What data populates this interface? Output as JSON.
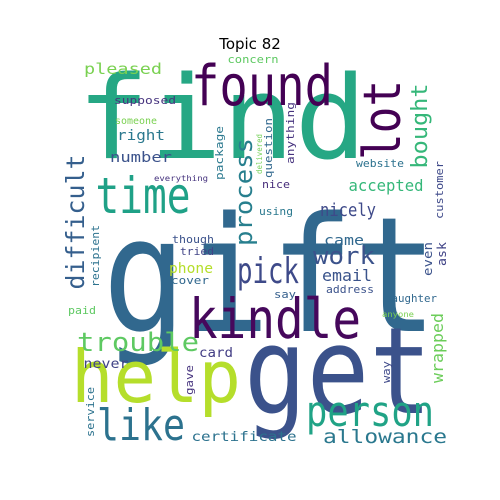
{
  "title": "Topic 82",
  "words": [
    {
      "text": "gift",
      "color": "#31688e",
      "vertical": false
    },
    {
      "text": "find",
      "color": "#26a784",
      "vertical": false
    },
    {
      "text": "get",
      "color": "#3b528b",
      "vertical": false
    },
    {
      "text": "help",
      "color": "#b5de2b",
      "vertical": false
    },
    {
      "text": "found",
      "color": "#440154",
      "vertical": false
    },
    {
      "text": "kindle",
      "color": "#46085c",
      "vertical": false
    },
    {
      "text": "time",
      "color": "#1fa187",
      "vertical": false
    },
    {
      "text": "lot",
      "color": "#440154",
      "vertical": true
    },
    {
      "text": "person",
      "color": "#20a386",
      "vertical": false
    },
    {
      "text": "like",
      "color": "#2c728e",
      "vertical": false
    },
    {
      "text": "pick",
      "color": "#3e4a89",
      "vertical": false
    },
    {
      "text": "trouble",
      "color": "#5ec962",
      "vertical": false
    },
    {
      "text": "difficult",
      "color": "#355f8d",
      "vertical": true
    },
    {
      "text": "work",
      "color": "#3b528b",
      "vertical": false
    },
    {
      "text": "process",
      "color": "#277f8e",
      "vertical": true
    },
    {
      "text": "bought",
      "color": "#35b779",
      "vertical": true
    },
    {
      "text": "allowance",
      "color": "#2a788e",
      "vertical": false
    },
    {
      "text": "nicely",
      "color": "#3e4989",
      "vertical": false
    },
    {
      "text": "accepted",
      "color": "#35b779",
      "vertical": false
    },
    {
      "text": "wrapped",
      "color": "#6ccd5a",
      "vertical": true
    },
    {
      "text": "email",
      "color": "#3a538b",
      "vertical": false
    },
    {
      "text": "pleased",
      "color": "#7ad151",
      "vertical": false
    },
    {
      "text": "number",
      "color": "#3b528b",
      "vertical": false
    },
    {
      "text": "right",
      "color": "#2a788e",
      "vertical": false
    },
    {
      "text": "came",
      "color": "#31688e",
      "vertical": false
    },
    {
      "text": "phone",
      "color": "#b5de2b",
      "vertical": false
    },
    {
      "text": "certificate",
      "color": "#2c728e",
      "vertical": false
    },
    {
      "text": "card",
      "color": "#433e85",
      "vertical": false
    },
    {
      "text": "never",
      "color": "#414487",
      "vertical": false
    },
    {
      "text": "package",
      "color": "#2a788e",
      "vertical": true
    },
    {
      "text": "question",
      "color": "#31688e",
      "vertical": true
    },
    {
      "text": "anything",
      "color": "#46337e",
      "vertical": true
    },
    {
      "text": "even",
      "color": "#3b528b",
      "vertical": true
    },
    {
      "text": "ask",
      "color": "#414487",
      "vertical": true
    },
    {
      "text": "website",
      "color": "#2c728e",
      "vertical": false
    },
    {
      "text": "customer",
      "color": "#3e4989",
      "vertical": true
    },
    {
      "text": "supposed",
      "color": "#46337e",
      "vertical": false
    },
    {
      "text": "concern",
      "color": "#5ec962",
      "vertical": false
    },
    {
      "text": "someone",
      "color": "#7ad151",
      "vertical": false
    },
    {
      "text": "everything",
      "color": "#46337e",
      "vertical": false
    },
    {
      "text": "delivered",
      "color": "#73d056",
      "vertical": true
    },
    {
      "text": "nice",
      "color": "#472d7b",
      "vertical": false
    },
    {
      "text": "using",
      "color": "#2a788e",
      "vertical": false
    },
    {
      "text": "though",
      "color": "#3b528b",
      "vertical": false
    },
    {
      "text": "tried",
      "color": "#414487",
      "vertical": false
    },
    {
      "text": "cover",
      "color": "#31688e",
      "vertical": false
    },
    {
      "text": "say",
      "color": "#355f8d",
      "vertical": false
    },
    {
      "text": "address",
      "color": "#3b528b",
      "vertical": false
    },
    {
      "text": "daughter",
      "color": "#31688e",
      "vertical": false
    },
    {
      "text": "anyone",
      "color": "#7ad151",
      "vertical": false
    },
    {
      "text": "paid",
      "color": "#5ec962",
      "vertical": false
    },
    {
      "text": "recipient",
      "color": "#2c728e",
      "vertical": true
    },
    {
      "text": "gave",
      "color": "#46337e",
      "vertical": true
    },
    {
      "text": "way",
      "color": "#3e4989",
      "vertical": true
    },
    {
      "text": "service",
      "color": "#2c728e",
      "vertical": true
    }
  ]
}
